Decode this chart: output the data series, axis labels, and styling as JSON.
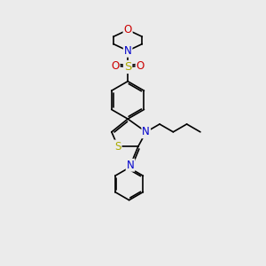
{
  "bg_color": "#ebebeb",
  "atom_colors": {
    "C": "#000000",
    "N": "#0000cc",
    "O": "#cc0000",
    "S": "#aaaa00",
    "H": "#000000"
  },
  "bond_color": "#000000",
  "bond_width": 1.2,
  "font_size": 8.5,
  "fig_size": [
    3.0,
    3.0
  ],
  "xlim": [
    0,
    10
  ],
  "ylim": [
    0,
    10
  ]
}
